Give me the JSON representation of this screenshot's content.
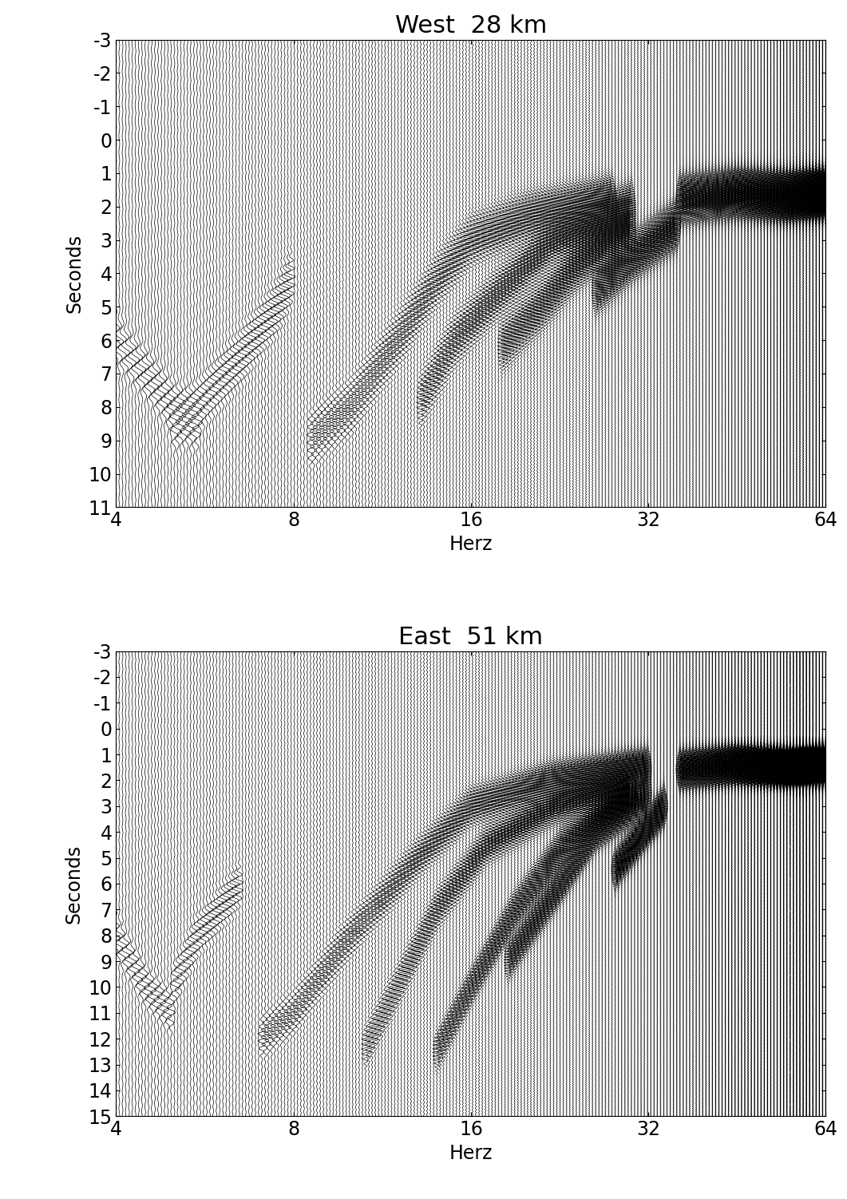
{
  "chart_data": [
    {
      "type": "line",
      "title": "West  28 km",
      "x_label": "Herz",
      "y_label": "Seconds",
      "log": "x",
      "color": "#000000",
      "xlim": [
        4,
        64
      ],
      "xticks": [
        4,
        8,
        16,
        32,
        64
      ],
      "ylim": [
        11,
        -3
      ],
      "yticks": [
        -3,
        -2,
        -1,
        0,
        1,
        2,
        3,
        4,
        5,
        6,
        7,
        8,
        9,
        10,
        11
      ],
      "series": [
        {
          "x": [
            4,
            4.5,
            5,
            5.5
          ],
          "values": [
            6,
            7,
            8,
            8.5
          ]
        },
        {
          "x": [
            5,
            5.5,
            6.5,
            7.5,
            8
          ],
          "values": [
            8.5,
            8,
            6.5,
            5,
            4
          ]
        },
        {
          "x": [
            8.5,
            10,
            12,
            14,
            16,
            20,
            28
          ],
          "values": [
            9,
            8,
            6,
            4.2,
            3,
            2.3,
            1.8
          ]
        },
        {
          "x": [
            13,
            15,
            18,
            22,
            30
          ],
          "values": [
            8,
            6,
            4.5,
            3,
            2
          ]
        },
        {
          "x": [
            18,
            21,
            24,
            30
          ],
          "values": [
            6.2,
            5,
            3.8,
            2.5
          ]
        },
        {
          "x": [
            26,
            30,
            36
          ],
          "values": [
            4.5,
            3.5,
            2.5
          ]
        },
        {
          "x": [
            36,
            45,
            55,
            64
          ],
          "values": [
            1.8,
            1.6,
            1.7,
            1.6
          ]
        }
      ]
    },
    {
      "type": "line",
      "title": "East  51 km",
      "x_label": "Herz",
      "y_label": "Seconds",
      "log": "x",
      "color": "#000000",
      "xlim": [
        4,
        64
      ],
      "xticks": [
        4,
        8,
        16,
        32,
        64
      ],
      "ylim": [
        15,
        -3
      ],
      "yticks": [
        -3,
        -2,
        -1,
        0,
        1,
        2,
        3,
        4,
        5,
        6,
        7,
        8,
        9,
        10,
        11,
        12,
        13,
        14,
        15
      ],
      "series": [
        {
          "x": [
            4,
            4.5,
            5
          ],
          "values": [
            8,
            10,
            11
          ]
        },
        {
          "x": [
            5,
            5.5,
            6,
            6.5
          ],
          "values": [
            10,
            8,
            7,
            6
          ]
        },
        {
          "x": [
            7,
            8,
            10,
            13,
            16,
            22,
            32
          ],
          "values": [
            12,
            11,
            8,
            5,
            3,
            2,
            1.5
          ]
        },
        {
          "x": [
            10.5,
            12,
            14,
            17,
            22,
            30
          ],
          "values": [
            12.5,
            10,
            7,
            4.5,
            3,
            2
          ]
        },
        {
          "x": [
            14,
            16,
            19,
            23,
            30
          ],
          "values": [
            12.5,
            10,
            7,
            4.5,
            2.5
          ]
        },
        {
          "x": [
            18.5,
            22,
            26,
            32
          ],
          "values": [
            9,
            6.5,
            4,
            2.5
          ]
        },
        {
          "x": [
            28,
            34
          ],
          "values": [
            5.5,
            3
          ]
        },
        {
          "x": [
            36,
            45,
            55,
            64
          ],
          "values": [
            1.6,
            1.4,
            1.5,
            1.4
          ]
        }
      ]
    }
  ]
}
